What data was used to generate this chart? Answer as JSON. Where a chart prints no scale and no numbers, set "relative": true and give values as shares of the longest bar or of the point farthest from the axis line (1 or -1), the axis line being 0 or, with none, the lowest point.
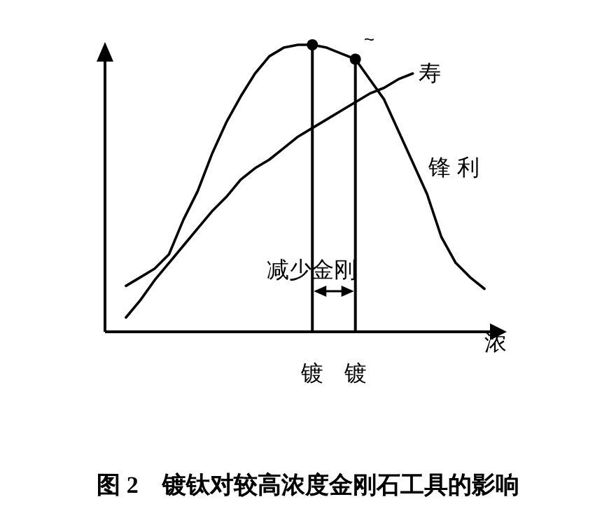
{
  "chart_data": {
    "type": "line",
    "relative": true,
    "title": "图 2　镀钛对较高浓度金刚石工具的影响",
    "xlabel": "浓",
    "categories": [
      null,
      null,
      null,
      null,
      null,
      null,
      null,
      null,
      null,
      null,
      null,
      null,
      null,
      "镀",
      null,
      null,
      "镀",
      null,
      null,
      null,
      null,
      null,
      null,
      null,
      null,
      null
    ],
    "series": [
      {
        "name": "锋 利",
        "color": "#000000",
        "values": [
          0.16,
          0.19,
          0.22,
          0.27,
          0.39,
          0.49,
          0.62,
          0.73,
          0.82,
          0.9,
          0.96,
          0.99,
          1,
          1,
          0.99,
          0.97,
          0.95,
          0.88,
          0.81,
          0.7,
          0.59,
          0.48,
          0.33,
          0.24,
          0.19,
          0.15
        ]
      },
      {
        "name": "寿",
        "color": "#000000",
        "values": [
          0.05,
          0.11,
          0.18,
          0.24,
          0.3,
          0.36,
          0.42,
          0.47,
          0.53,
          0.57,
          0.6,
          0.64,
          0.68,
          0.71,
          0.74,
          0.77,
          0.8,
          0.83,
          0.85,
          0.88,
          0.9,
          null,
          null,
          null,
          null,
          null
        ]
      },
      {
        "type": "lollipop",
        "marker": "circle",
        "color": "#000000",
        "values": [
          null,
          null,
          null,
          null,
          null,
          null,
          null,
          null,
          null,
          null,
          null,
          null,
          null,
          1,
          null,
          null,
          0.95,
          null,
          null,
          null,
          null,
          null,
          null,
          null,
          null,
          null
        ]
      }
    ],
    "annotations": [
      "减少金刚",
      "~"
    ]
  }
}
